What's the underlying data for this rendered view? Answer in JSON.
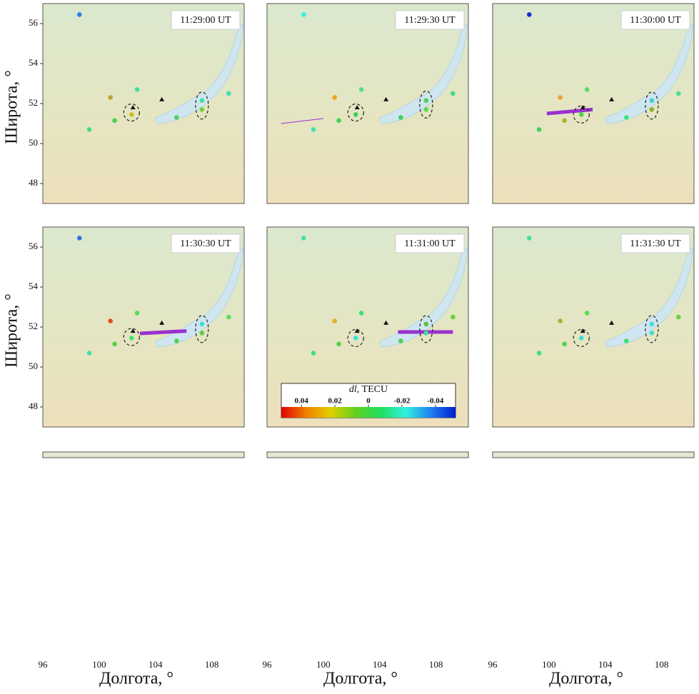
{
  "ylabel": "Широта, °",
  "xlabel": "Долгота, °",
  "xlim": [
    96,
    110.3
  ],
  "ylim": [
    47,
    57
  ],
  "yticks": [
    48,
    50,
    52,
    54,
    56
  ],
  "xticks": [
    96,
    100,
    104,
    108
  ],
  "stations": {
    "lon": [
      98.6,
      100.8,
      102.7,
      102.3,
      101.1,
      99.3,
      105.5,
      107.3,
      107.3,
      109.2
    ],
    "lat": [
      56.45,
      52.3,
      52.7,
      51.45,
      51.15,
      50.7,
      51.3,
      52.15,
      51.7,
      52.5
    ]
  },
  "triangles": {
    "lon": [
      104.45,
      102.4
    ],
    "lat": [
      52.2,
      51.8
    ]
  },
  "panels": [
    {
      "time": "11:29:00 UT",
      "colors": [
        "#2a80e8",
        "#b8a830",
        "#40e0a0",
        "#c8c020",
        "#50d050",
        "#40e080",
        "#50d060",
        "#40e0a0",
        "#70d040",
        "#40e0b0"
      ],
      "ellipses": {
        "lon": [
          102.3,
          107.3
        ],
        "lat": [
          51.55,
          51.9
        ]
      },
      "track": null
    },
    {
      "time": "11:29:30 UT",
      "colors": [
        "#30f0e0",
        "#f0a020",
        "#50e080",
        "#40d050",
        "#40d050",
        "#40e0b0",
        "#40d060",
        "#50d050",
        "#50e050",
        "#40e080"
      ],
      "ellipses": {
        "lon": [
          102.3,
          107.3
        ],
        "lat": [
          51.55,
          51.95
        ]
      },
      "track": {
        "lon": [
          97.0,
          100.0
        ],
        "lat": [
          51.0,
          51.25
        ],
        "width": 1
      }
    },
    {
      "time": "11:30:00 UT",
      "colors": [
        "#1030d0",
        "#f0a030",
        "#50e060",
        "#50d040",
        "#b0b030",
        "#40d060",
        "#40e080",
        "#40d0c0",
        "#90b030",
        "#40e0a0"
      ],
      "ellipses": {
        "lon": [
          102.3,
          107.3
        ],
        "lat": [
          51.45,
          51.9
        ]
      },
      "track": {
        "lon": [
          99.85,
          103.1
        ],
        "lat": [
          51.5,
          51.7
        ],
        "width": 5
      }
    },
    {
      "time": "11:30:30 UT",
      "colors": [
        "#3070e0",
        "#e05020",
        "#50e050",
        "#40e070",
        "#60d040",
        "#40e0b0",
        "#50d050",
        "#40e0c0",
        "#60d040",
        "#50e060"
      ],
      "ellipses": {
        "lon": [
          102.3,
          107.3
        ],
        "lat": [
          51.5,
          51.9
        ]
      },
      "track": {
        "lon": [
          102.9,
          106.2
        ],
        "lat": [
          51.68,
          51.8
        ],
        "width": 5
      }
    },
    {
      "time": "11:31:00 UT",
      "colors": [
        "#40e0b0",
        "#e0b030",
        "#40e070",
        "#40e0e0",
        "#60d040",
        "#40e080",
        "#50d050",
        "#60c040",
        "#40e0a0",
        "#70d030"
      ],
      "ellipses": {
        "lon": [
          102.3,
          107.3
        ],
        "lat": [
          51.45,
          51.9
        ]
      },
      "track": {
        "lon": [
          105.3,
          109.2
        ],
        "lat": [
          51.75,
          51.75
        ],
        "width": 5
      }
    },
    {
      "time": "11:31:30 UT",
      "colors": [
        "#40e0a0",
        "#b0b030",
        "#50e050",
        "#40e0d0",
        "#50d050",
        "#40e070",
        "#40e070",
        "#40e0d0",
        "#40e0e0",
        "#70d040"
      ],
      "ellipses": {
        "lon": [
          102.3,
          107.3
        ],
        "lat": [
          51.45,
          51.9
        ]
      },
      "track": null
    }
  ],
  "colorbar": {
    "symbol": "dl",
    "unit": "TECU",
    "clim": [
      0.052,
      -0.052
    ],
    "ticks": [
      0.04,
      0.02,
      0,
      -0.02,
      -0.04
    ],
    "colors": [
      "#e00000",
      "#f08000",
      "#e0d000",
      "#60d020",
      "#20e060",
      "#30f0e0",
      "#2080f0",
      "#0020d0"
    ]
  }
}
